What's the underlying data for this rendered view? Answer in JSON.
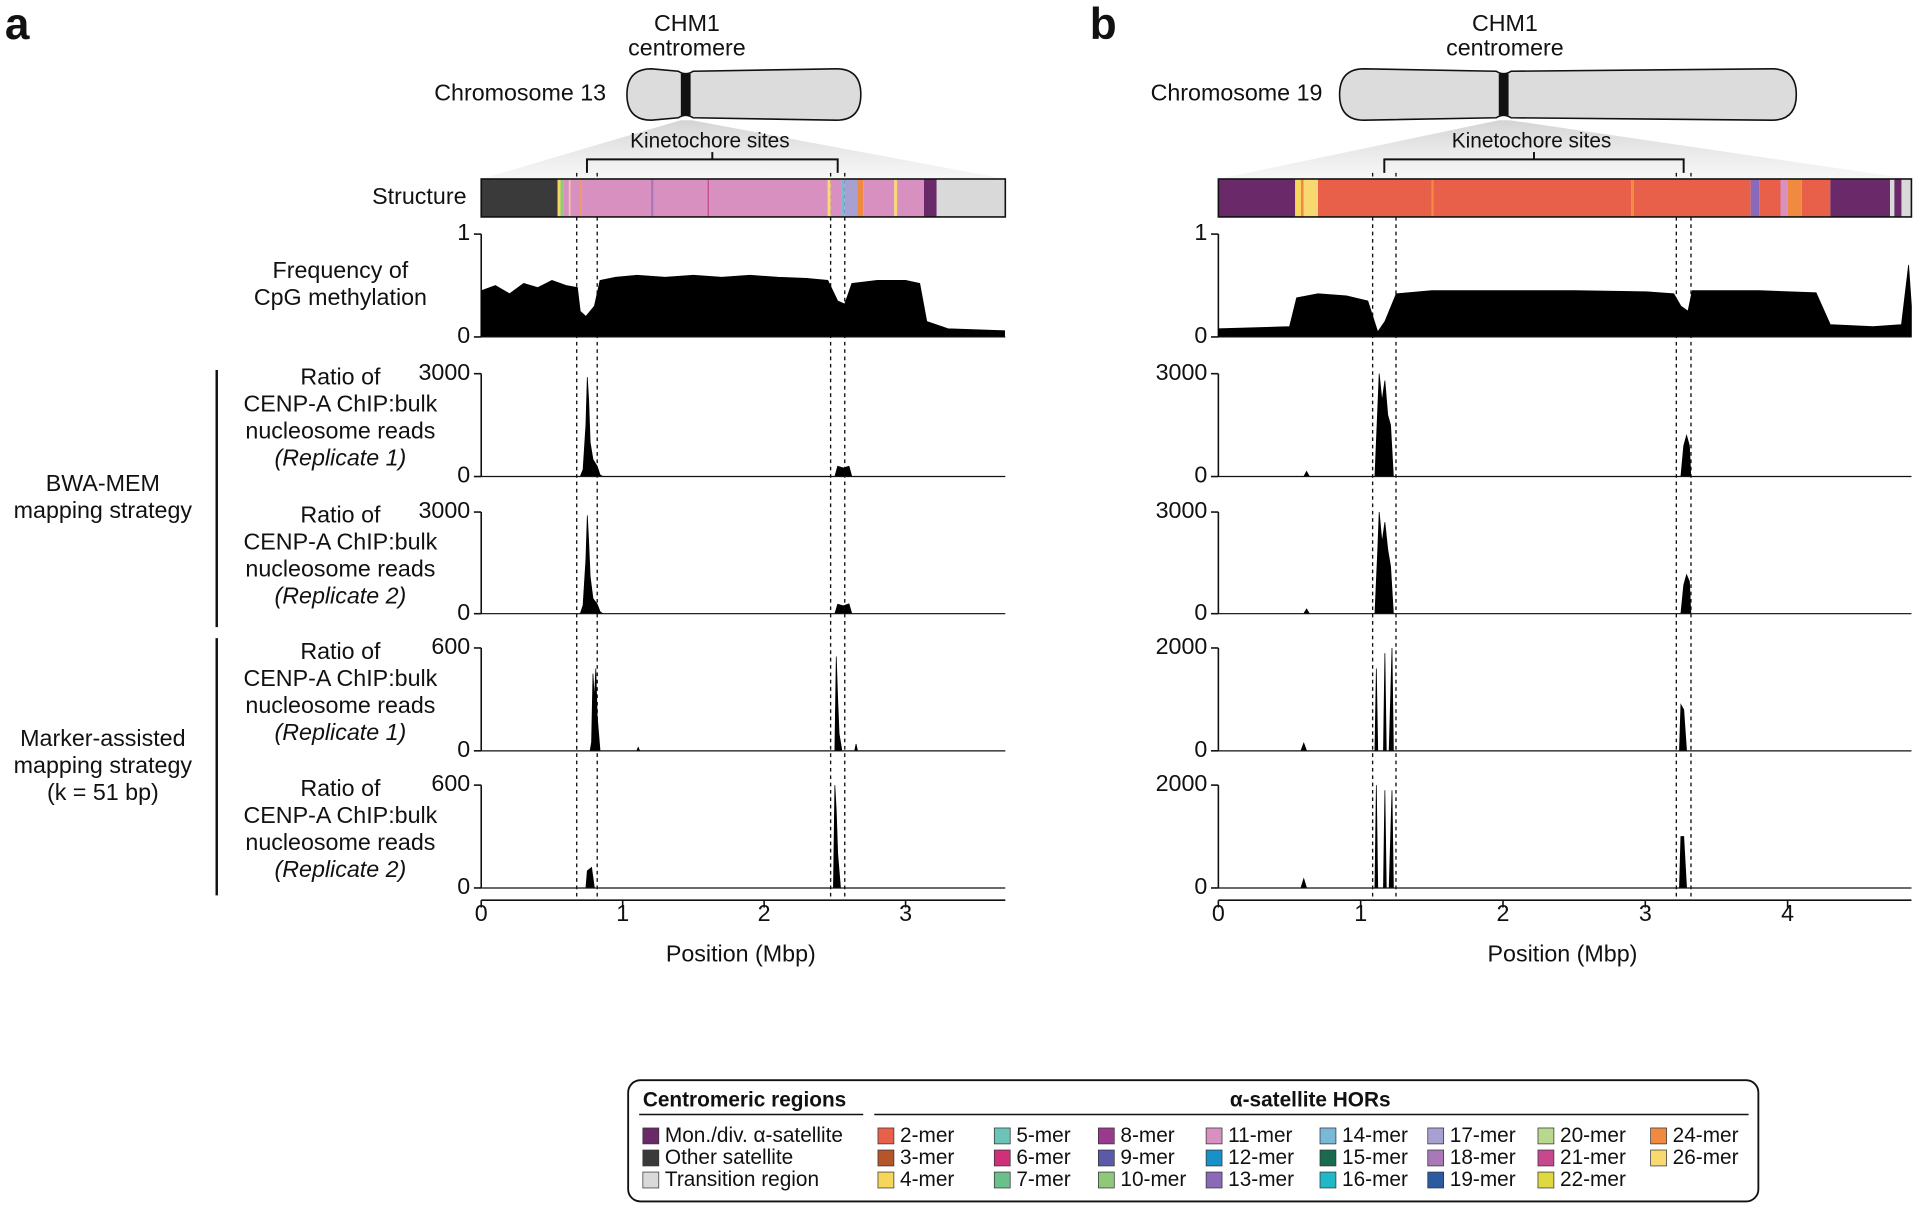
{
  "panels": [
    {
      "letter": "a",
      "assembly": [
        "CHM1",
        "centromere"
      ],
      "chromosome": "Chromosome 13",
      "kinetochore_label": "Kinetochore sites",
      "structure_label": "Structure"
    },
    {
      "letter": "b",
      "assembly": [
        "CHM1",
        "centromere"
      ],
      "chromosome": "Chromosome 19",
      "kinetochore_label": "Kinetochore sites"
    }
  ],
  "groups": [
    {
      "label": [
        "BWA-MEM",
        "mapping strategy"
      ]
    },
    {
      "label": [
        "Marker-assisted",
        "mapping strategy",
        "(k = 51 bp)"
      ]
    }
  ],
  "chart_data": [
    {
      "type": "area",
      "xlim": [
        0,
        3.705
      ],
      "xticks": [
        0,
        1,
        2,
        3
      ],
      "x_label": "Position (Mbp)",
      "color": "#000000",
      "kinetochore_bounds": [
        0.675,
        0.82,
        2.47,
        2.57
      ],
      "structure": [
        {
          "start": 0,
          "end": 0.54,
          "color": "#3a3a3a"
        },
        {
          "start": 0.54,
          "end": 0.56,
          "color": "#f5d55a"
        },
        {
          "start": 0.56,
          "end": 0.58,
          "color": "#8fc87a"
        },
        {
          "start": 0.58,
          "end": 0.62,
          "color": "#d890c0"
        },
        {
          "start": 0.62,
          "end": 0.63,
          "color": "#f5d55a"
        },
        {
          "start": 0.63,
          "end": 0.7,
          "color": "#d890c0"
        },
        {
          "start": 0.7,
          "end": 0.71,
          "color": "#f08a40"
        },
        {
          "start": 0.71,
          "end": 1.2,
          "color": "#d890c0"
        },
        {
          "start": 1.2,
          "end": 1.22,
          "color": "#a878b8"
        },
        {
          "start": 1.22,
          "end": 1.6,
          "color": "#d890c0"
        },
        {
          "start": 1.6,
          "end": 1.61,
          "color": "#c84890"
        },
        {
          "start": 1.61,
          "end": 2.45,
          "color": "#d890c0"
        },
        {
          "start": 2.45,
          "end": 2.47,
          "color": "#f8d870"
        },
        {
          "start": 2.47,
          "end": 2.55,
          "color": "#d890c0"
        },
        {
          "start": 2.55,
          "end": 2.57,
          "color": "#7ab8d8"
        },
        {
          "start": 2.57,
          "end": 2.66,
          "color": "#a8a0d0"
        },
        {
          "start": 2.66,
          "end": 2.7,
          "color": "#f08a40"
        },
        {
          "start": 2.7,
          "end": 2.92,
          "color": "#d890c0"
        },
        {
          "start": 2.92,
          "end": 2.94,
          "color": "#f8d870"
        },
        {
          "start": 2.94,
          "end": 3.13,
          "color": "#d890c0"
        },
        {
          "start": 3.13,
          "end": 3.22,
          "color": "#6a2a6a"
        },
        {
          "start": 3.22,
          "end": 3.705,
          "color": "#d9d9d9"
        }
      ],
      "tracks": [
        {
          "ylabel": [
            "Frequency of",
            "CpG methylation"
          ],
          "ylim": [
            0,
            1
          ],
          "yticks": [
            0,
            1
          ],
          "x": [
            0,
            0.1,
            0.2,
            0.3,
            0.4,
            0.5,
            0.6,
            0.68,
            0.7,
            0.74,
            0.8,
            0.84,
            0.95,
            1.1,
            1.3,
            1.5,
            1.7,
            1.9,
            2.1,
            2.3,
            2.45,
            2.52,
            2.57,
            2.62,
            2.8,
            3.0,
            3.1,
            3.15,
            3.3,
            3.5,
            3.7
          ],
          "values": [
            0.45,
            0.5,
            0.42,
            0.52,
            0.48,
            0.55,
            0.5,
            0.48,
            0.25,
            0.2,
            0.3,
            0.55,
            0.58,
            0.6,
            0.58,
            0.6,
            0.58,
            0.6,
            0.58,
            0.57,
            0.55,
            0.35,
            0.32,
            0.52,
            0.55,
            0.55,
            0.52,
            0.15,
            0.08,
            0.07,
            0.06
          ]
        },
        {
          "ylabel": [
            "Ratio of",
            "CENP-A ChIP:bulk",
            "nucleosome reads",
            "(Replicate 1)"
          ],
          "ylim": [
            0,
            3000
          ],
          "yticks": [
            0,
            3000
          ],
          "x": [
            0,
            0.7,
            0.72,
            0.74,
            0.75,
            0.76,
            0.77,
            0.79,
            0.82,
            0.84,
            0.86,
            2.5,
            2.52,
            2.56,
            2.6,
            2.62,
            3.7
          ],
          "values": [
            0,
            0,
            200,
            1500,
            2900,
            2200,
            1000,
            500,
            300,
            50,
            0,
            0,
            300,
            250,
            300,
            0,
            0
          ]
        },
        {
          "ylabel": [
            "Ratio of",
            "CENP-A ChIP:bulk",
            "nucleosome reads",
            "(Replicate 2)"
          ],
          "ylim": [
            0,
            3000
          ],
          "yticks": [
            0,
            3000
          ],
          "x": [
            0,
            0.7,
            0.72,
            0.74,
            0.75,
            0.76,
            0.77,
            0.79,
            0.82,
            0.84,
            0.86,
            2.5,
            2.52,
            2.56,
            2.6,
            2.62,
            3.7
          ],
          "values": [
            0,
            0,
            250,
            1600,
            2900,
            2100,
            1100,
            450,
            280,
            60,
            0,
            0,
            280,
            230,
            290,
            0,
            0
          ]
        },
        {
          "ylabel": [
            "Ratio of",
            "CENP-A ChIP:bulk",
            "nucleosome reads",
            "(Replicate 1)"
          ],
          "ylim": [
            0,
            600
          ],
          "yticks": [
            0,
            600
          ],
          "x": [
            0,
            0.77,
            0.78,
            0.79,
            0.8,
            0.81,
            0.82,
            0.84,
            1.1,
            1.11,
            1.12,
            2.5,
            2.51,
            2.52,
            2.53,
            2.55,
            2.64,
            2.65,
            2.66,
            3.7
          ],
          "values": [
            0,
            0,
            50,
            450,
            300,
            480,
            200,
            0,
            0,
            20,
            0,
            0,
            550,
            300,
            100,
            0,
            0,
            40,
            0,
            0
          ]
        },
        {
          "ylabel": [
            "Ratio of",
            "CENP-A ChIP:bulk",
            "nucleosome reads",
            "(Replicate 2)"
          ],
          "ylim": [
            0,
            600
          ],
          "yticks": [
            0,
            600
          ],
          "x": [
            0,
            0.74,
            0.75,
            0.78,
            0.8,
            2.49,
            2.5,
            2.51,
            2.52,
            2.54,
            3.7
          ],
          "values": [
            0,
            0,
            100,
            120,
            0,
            0,
            600,
            450,
            200,
            0,
            0
          ]
        }
      ]
    },
    {
      "type": "area",
      "xlim": [
        0,
        4.87
      ],
      "xticks": [
        0,
        1,
        2,
        3,
        4
      ],
      "x_label": "Position (Mbp)",
      "color": "#000000",
      "kinetochore_bounds": [
        1.084,
        1.248,
        3.218,
        3.321
      ],
      "structure": [
        {
          "start": 0,
          "end": 0.54,
          "color": "#6a2a6a"
        },
        {
          "start": 0.54,
          "end": 0.58,
          "color": "#f5d55a"
        },
        {
          "start": 0.58,
          "end": 0.6,
          "color": "#f08a40"
        },
        {
          "start": 0.6,
          "end": 0.7,
          "color": "#f8d870"
        },
        {
          "start": 0.7,
          "end": 1.5,
          "color": "#e8604a"
        },
        {
          "start": 1.5,
          "end": 1.51,
          "color": "#f08a40"
        },
        {
          "start": 1.51,
          "end": 2.9,
          "color": "#e8604a"
        },
        {
          "start": 2.9,
          "end": 2.92,
          "color": "#f08a40"
        },
        {
          "start": 2.92,
          "end": 3.74,
          "color": "#e8604a"
        },
        {
          "start": 3.74,
          "end": 3.8,
          "color": "#8a6ab8"
        },
        {
          "start": 3.8,
          "end": 3.95,
          "color": "#e8604a"
        },
        {
          "start": 3.95,
          "end": 4.0,
          "color": "#d890c0"
        },
        {
          "start": 4.0,
          "end": 4.1,
          "color": "#f08a40"
        },
        {
          "start": 4.1,
          "end": 4.3,
          "color": "#e8604a"
        },
        {
          "start": 4.3,
          "end": 4.72,
          "color": "#6a2a6a"
        },
        {
          "start": 4.72,
          "end": 4.75,
          "color": "#d9d9d9"
        },
        {
          "start": 4.75,
          "end": 4.8,
          "color": "#6a2a6a"
        },
        {
          "start": 4.8,
          "end": 4.87,
          "color": "#d9d9d9"
        }
      ],
      "tracks": [
        {
          "ylim": [
            0,
            1
          ],
          "yticks": [
            0,
            1
          ],
          "x": [
            0,
            0.5,
            0.55,
            0.7,
            0.9,
            1.05,
            1.12,
            1.17,
            1.25,
            1.5,
            2,
            2.5,
            3,
            3.2,
            3.25,
            3.3,
            3.33,
            3.8,
            4.2,
            4.3,
            4.6,
            4.8,
            4.85,
            4.87
          ],
          "values": [
            0.08,
            0.1,
            0.38,
            0.42,
            0.4,
            0.35,
            0.05,
            0.15,
            0.42,
            0.45,
            0.45,
            0.45,
            0.44,
            0.42,
            0.3,
            0.25,
            0.45,
            0.45,
            0.43,
            0.12,
            0.1,
            0.12,
            0.7,
            0.3
          ]
        },
        {
          "ylim": [
            0,
            3000
          ],
          "yticks": [
            0,
            3000
          ],
          "x": [
            0,
            0.6,
            0.62,
            0.64,
            1.1,
            1.12,
            1.13,
            1.15,
            1.17,
            1.19,
            1.21,
            1.23,
            3.25,
            3.27,
            3.29,
            3.31,
            3.32,
            4.87
          ],
          "values": [
            0,
            0,
            150,
            0,
            0,
            2000,
            3000,
            2200,
            2800,
            1800,
            1500,
            0,
            0,
            900,
            1200,
            900,
            0,
            0
          ]
        },
        {
          "ylim": [
            0,
            3000
          ],
          "yticks": [
            0,
            3000
          ],
          "x": [
            0,
            0.6,
            0.62,
            0.64,
            1.1,
            1.12,
            1.13,
            1.15,
            1.17,
            1.19,
            1.21,
            1.23,
            3.25,
            3.27,
            3.29,
            3.31,
            3.32,
            4.87
          ],
          "values": [
            0,
            0,
            140,
            0,
            0,
            1900,
            3000,
            2100,
            2700,
            1900,
            1400,
            0,
            0,
            850,
            1150,
            950,
            0,
            0
          ]
        },
        {
          "ylim": [
            0,
            2000
          ],
          "yticks": [
            0,
            2000
          ],
          "x": [
            0,
            0.58,
            0.6,
            0.62,
            1.1,
            1.11,
            1.12,
            1.16,
            1.17,
            1.18,
            1.2,
            1.22,
            1.23,
            3.24,
            3.25,
            3.27,
            3.29,
            4.87
          ],
          "values": [
            0,
            0,
            150,
            0,
            0,
            1600,
            0,
            0,
            1900,
            0,
            0,
            2000,
            0,
            0,
            900,
            800,
            0,
            0
          ]
        },
        {
          "ylim": [
            0,
            2000
          ],
          "yticks": [
            0,
            2000
          ],
          "x": [
            0,
            0.58,
            0.6,
            0.62,
            1.1,
            1.11,
            1.12,
            1.16,
            1.17,
            1.18,
            1.2,
            1.22,
            1.23,
            3.24,
            3.25,
            3.27,
            3.29,
            4.87
          ],
          "values": [
            0,
            0,
            180,
            0,
            0,
            2000,
            0,
            0,
            1900,
            0,
            0,
            1900,
            0,
            0,
            1000,
            1000,
            0,
            0
          ]
        }
      ]
    }
  ],
  "legend": {
    "regions": {
      "title": "Centromeric regions",
      "items": [
        {
          "name": "Mon./div. α-satellite",
          "color": "#6a2a6a"
        },
        {
          "name": "Other satellite",
          "color": "#3a3a3a"
        },
        {
          "name": "Transition region",
          "color": "#d9d9d9"
        }
      ]
    },
    "hors": {
      "title": "α-satellite HORs",
      "items": [
        {
          "name": "2-mer",
          "color": "#e8604a"
        },
        {
          "name": "3-mer",
          "color": "#b5552a"
        },
        {
          "name": "4-mer",
          "color": "#f5d55a"
        },
        {
          "name": "5-mer",
          "color": "#6cc4b8"
        },
        {
          "name": "6-mer",
          "color": "#d0307a"
        },
        {
          "name": "7-mer",
          "color": "#6bbf8a"
        },
        {
          "name": "8-mer",
          "color": "#9a3a8f"
        },
        {
          "name": "9-mer",
          "color": "#5a5aa8"
        },
        {
          "name": "10-mer",
          "color": "#8fc87a"
        },
        {
          "name": "11-mer",
          "color": "#d890c0"
        },
        {
          "name": "12-mer",
          "color": "#1a90c8"
        },
        {
          "name": "13-mer",
          "color": "#8a6ab8"
        },
        {
          "name": "14-mer",
          "color": "#7ab8d8"
        },
        {
          "name": "15-mer",
          "color": "#1a6a50"
        },
        {
          "name": "16-mer",
          "color": "#20b8c8"
        },
        {
          "name": "17-mer",
          "color": "#a8a0d0"
        },
        {
          "name": "18-mer",
          "color": "#a878b8"
        },
        {
          "name": "19-mer",
          "color": "#2a5aa0"
        },
        {
          "name": "20-mer",
          "color": "#b8d890"
        },
        {
          "name": "21-mer",
          "color": "#c84890"
        },
        {
          "name": "22-mer",
          "color": "#e0d840"
        },
        {
          "name": "24-mer",
          "color": "#f08a40"
        },
        {
          "name": "26-mer",
          "color": "#f8d870"
        }
      ]
    }
  }
}
